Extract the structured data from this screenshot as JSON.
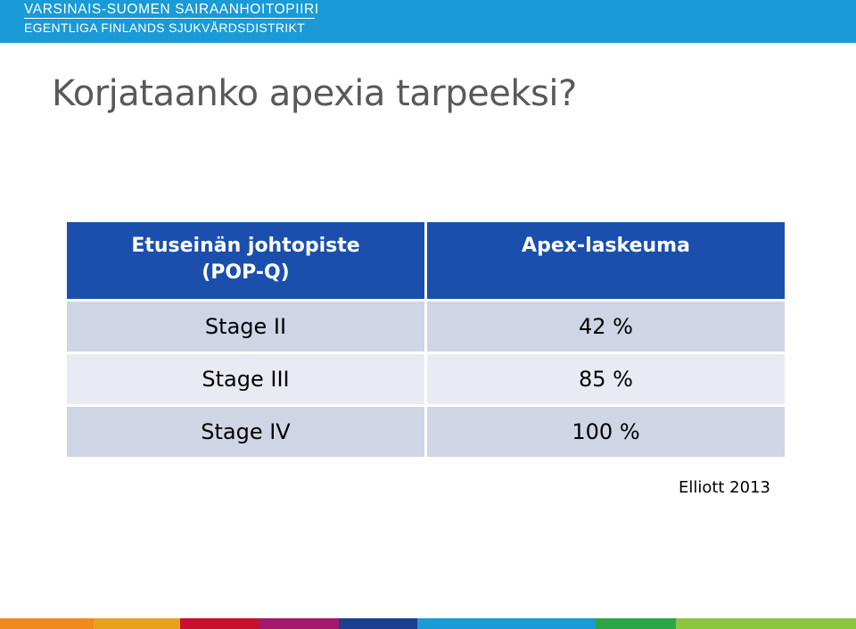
{
  "header": {
    "org_line1": "VARSINAIS-SUOMEN SAIRAANHOITOPIIRI",
    "org_line2": "EGENTLIGA FINLANDS SJUKVÅRDSDISTRIKT",
    "bar_color": "#1a9ad6"
  },
  "slide": {
    "title": "Korjataanko apexia tarpeeksi?"
  },
  "table": {
    "headers": {
      "col1_line1": "Etuseinän johtopiste",
      "col1_line2": "(POP-Q)",
      "col2": "Apex-laskeuma"
    },
    "rows": [
      {
        "stage": "Stage II",
        "value": "42 %"
      },
      {
        "stage": "Stage III",
        "value": "85 %"
      },
      {
        "stage": "Stage IV",
        "value": "100 %"
      }
    ],
    "header_color": "#1a4fae"
  },
  "citation": "Elliott 2013",
  "footer_colors": [
    "#f08a1c",
    "#e8a11c",
    "#c8102e",
    "#a3176c",
    "#1d3f8f",
    "#1a9ad6",
    "#2aa647",
    "#8cc63f"
  ]
}
